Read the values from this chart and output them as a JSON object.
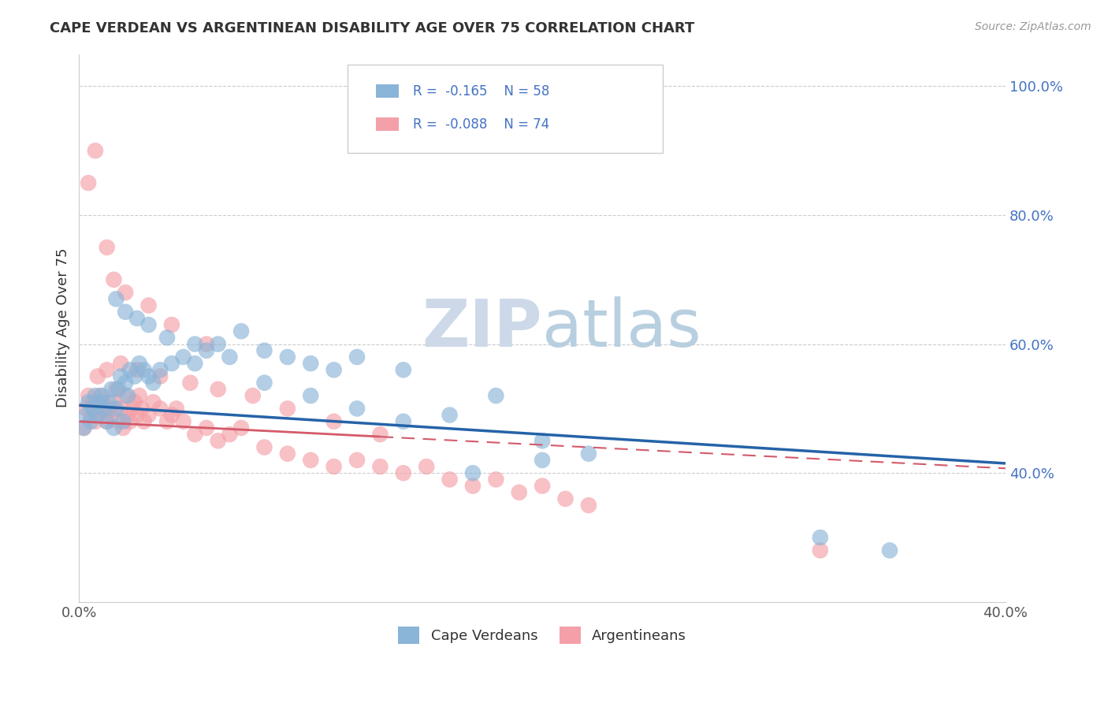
{
  "title": "CAPE VERDEAN VS ARGENTINEAN DISABILITY AGE OVER 75 CORRELATION CHART",
  "source": "Source: ZipAtlas.com",
  "ylabel": "Disability Age Over 75",
  "legend_label1": "Cape Verdeans",
  "legend_label2": "Argentineans",
  "r1": -0.165,
  "n1": 58,
  "r2": -0.088,
  "n2": 74,
  "xmin": 0.0,
  "xmax": 0.4,
  "ymin": 0.2,
  "ymax": 1.05,
  "yticks": [
    0.4,
    0.6,
    0.8,
    1.0
  ],
  "ytick_labels": [
    "40.0%",
    "60.0%",
    "80.0%",
    "100.0%"
  ],
  "color_blue": "#8ab4d8",
  "color_pink": "#f4a0a8",
  "trendline_blue": "#2563a8",
  "trendline_pink": "#d45a6a",
  "watermark_color": "#cdd9e8",
  "cv_trend_x0": 0.0,
  "cv_trend_x1": 0.4,
  "cv_trend_y0": 0.505,
  "cv_trend_y1": 0.415,
  "arg_trend_x0": 0.0,
  "arg_trend_x1": 0.22,
  "arg_trend_y0": 0.48,
  "arg_trend_y1": 0.44,
  "cape_verdean_x": [
    0.002,
    0.003,
    0.004,
    0.005,
    0.006,
    0.007,
    0.008,
    0.009,
    0.01,
    0.011,
    0.012,
    0.013,
    0.014,
    0.015,
    0.016,
    0.017,
    0.018,
    0.019,
    0.02,
    0.021,
    0.022,
    0.024,
    0.026,
    0.028,
    0.03,
    0.032,
    0.035,
    0.04,
    0.045,
    0.05,
    0.055,
    0.06,
    0.07,
    0.08,
    0.09,
    0.1,
    0.11,
    0.12,
    0.14,
    0.16,
    0.18,
    0.2,
    0.22,
    0.016,
    0.02,
    0.025,
    0.03,
    0.038,
    0.05,
    0.065,
    0.08,
    0.1,
    0.12,
    0.14,
    0.17,
    0.2,
    0.32,
    0.35
  ],
  "cape_verdean_y": [
    0.47,
    0.49,
    0.51,
    0.48,
    0.5,
    0.52,
    0.49,
    0.51,
    0.52,
    0.5,
    0.48,
    0.51,
    0.53,
    0.47,
    0.5,
    0.53,
    0.55,
    0.48,
    0.54,
    0.52,
    0.56,
    0.55,
    0.57,
    0.56,
    0.55,
    0.54,
    0.56,
    0.57,
    0.58,
    0.57,
    0.59,
    0.6,
    0.62,
    0.59,
    0.58,
    0.57,
    0.56,
    0.58,
    0.56,
    0.49,
    0.52,
    0.45,
    0.43,
    0.67,
    0.65,
    0.64,
    0.63,
    0.61,
    0.6,
    0.58,
    0.54,
    0.52,
    0.5,
    0.48,
    0.4,
    0.42,
    0.3,
    0.28
  ],
  "argentinean_x": [
    0.002,
    0.003,
    0.004,
    0.005,
    0.006,
    0.007,
    0.008,
    0.009,
    0.01,
    0.011,
    0.012,
    0.013,
    0.014,
    0.015,
    0.016,
    0.017,
    0.018,
    0.019,
    0.02,
    0.021,
    0.022,
    0.023,
    0.024,
    0.025,
    0.026,
    0.027,
    0.028,
    0.03,
    0.032,
    0.035,
    0.038,
    0.04,
    0.042,
    0.045,
    0.05,
    0.055,
    0.06,
    0.065,
    0.07,
    0.08,
    0.09,
    0.1,
    0.11,
    0.12,
    0.13,
    0.14,
    0.15,
    0.16,
    0.17,
    0.18,
    0.19,
    0.2,
    0.21,
    0.22,
    0.008,
    0.012,
    0.018,
    0.025,
    0.035,
    0.048,
    0.06,
    0.075,
    0.09,
    0.11,
    0.13,
    0.015,
    0.02,
    0.03,
    0.04,
    0.055,
    0.004,
    0.007,
    0.012,
    0.32
  ],
  "argentinean_y": [
    0.47,
    0.5,
    0.52,
    0.49,
    0.51,
    0.48,
    0.5,
    0.52,
    0.51,
    0.49,
    0.48,
    0.5,
    0.49,
    0.51,
    0.53,
    0.48,
    0.5,
    0.47,
    0.52,
    0.49,
    0.48,
    0.5,
    0.51,
    0.49,
    0.52,
    0.5,
    0.48,
    0.49,
    0.51,
    0.5,
    0.48,
    0.49,
    0.5,
    0.48,
    0.46,
    0.47,
    0.45,
    0.46,
    0.47,
    0.44,
    0.43,
    0.42,
    0.41,
    0.42,
    0.41,
    0.4,
    0.41,
    0.39,
    0.38,
    0.39,
    0.37,
    0.38,
    0.36,
    0.35,
    0.55,
    0.56,
    0.57,
    0.56,
    0.55,
    0.54,
    0.53,
    0.52,
    0.5,
    0.48,
    0.46,
    0.7,
    0.68,
    0.66,
    0.63,
    0.6,
    0.85,
    0.9,
    0.75,
    0.28
  ]
}
